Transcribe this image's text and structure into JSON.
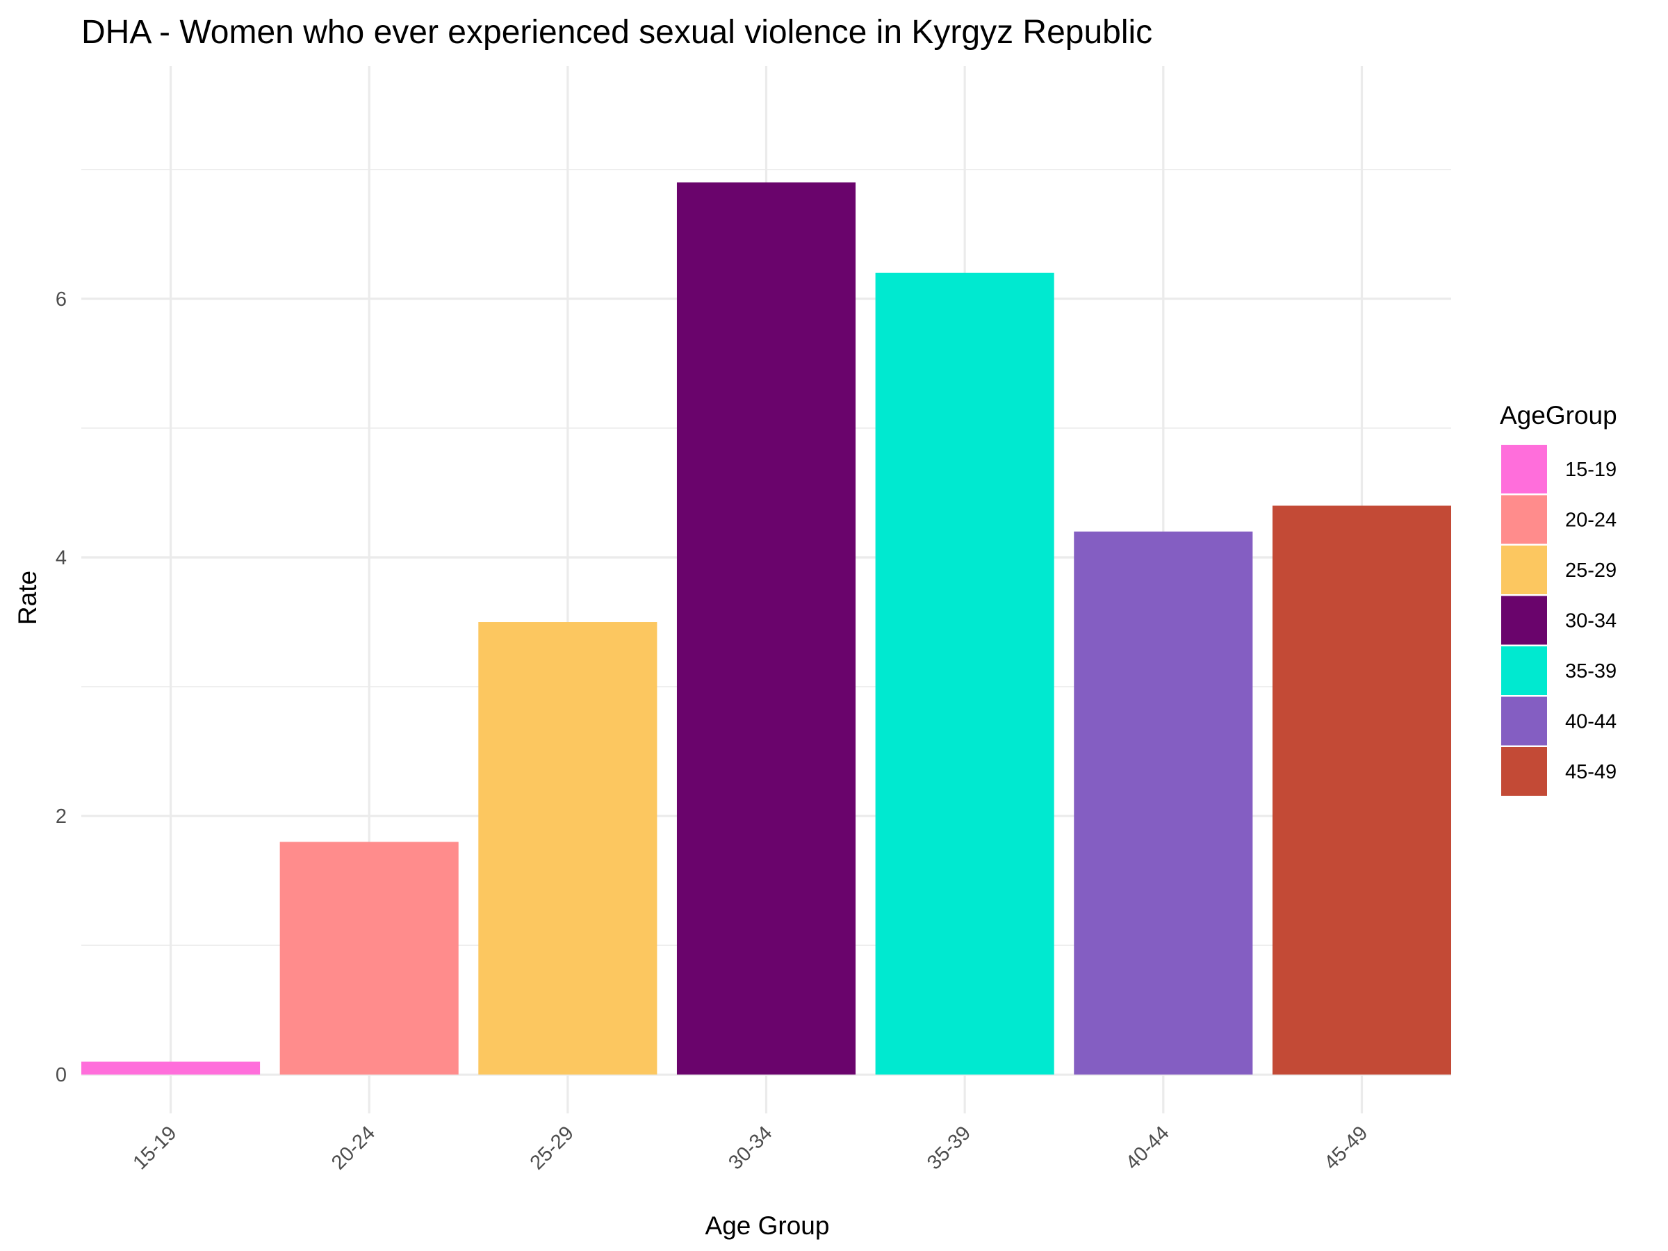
{
  "chart_data": {
    "type": "bar",
    "title": "DHA - Women who ever experienced sexual violence in Kyrgyz Republic",
    "xlabel": "Age Group",
    "ylabel": "Rate",
    "categories": [
      "15-19",
      "20-24",
      "25-29",
      "30-34",
      "35-39",
      "40-44",
      "45-49"
    ],
    "values": [
      0.1,
      1.8,
      3.5,
      6.9,
      6.2,
      4.2,
      4.4
    ],
    "colors": [
      "#FF6EDB",
      "#FF8C8C",
      "#FCC760",
      "#6A046C",
      "#00E9D0",
      "#845EC2",
      "#C34A36"
    ],
    "ylim": [
      -0.3,
      7.8
    ],
    "y_ticks": [
      0,
      2,
      4,
      6
    ],
    "y_tick_labels": [
      "0",
      "2",
      "4",
      "6"
    ],
    "grid": true,
    "legend": {
      "title": "AgeGroup",
      "position": "right",
      "entries": [
        "15-19",
        "20-24",
        "25-29",
        "30-34",
        "35-39",
        "40-44",
        "45-49"
      ]
    }
  }
}
